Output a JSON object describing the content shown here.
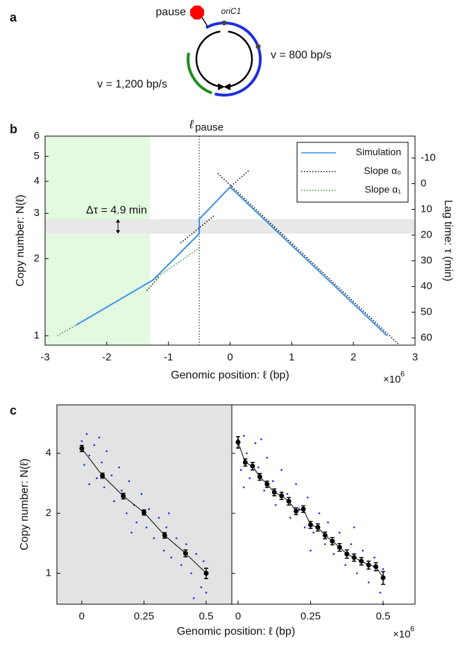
{
  "panel_labels": [
    "a",
    "b",
    "c"
  ],
  "diagram": {
    "pause_label": "pause",
    "origin_label": "oriC1",
    "right_speed": "v = 800 bp/s",
    "left_speed": "v = 1,200 bp/s"
  },
  "chart_data": [
    {
      "type": "line",
      "xlabel": "Genomic position: ℓ (bp)",
      "x_multiplier": "×10",
      "x_multiplier_exp": "6",
      "ylabel": "Copy number: N(ℓ)",
      "y2label": "Lag time:  τ (min)",
      "xlim": [
        -3,
        3
      ],
      "xticks": [
        -3,
        -2,
        -1,
        0,
        1,
        2,
        3
      ],
      "ylim": [
        0.92,
        6
      ],
      "ylog": true,
      "yticks": [
        1,
        2,
        3,
        4,
        5,
        6
      ],
      "y2lim": [
        -18.5,
        62.8
      ],
      "y2_inverted": true,
      "y2ticks": [
        -10,
        0,
        10,
        20,
        30,
        40,
        50,
        60
      ],
      "legend": "upper right",
      "x_region": {
        "xlim": [
          -3,
          -1.3
        ],
        "color": "#e3fae0"
      },
      "y_band": {
        "ylim": [
          2.5,
          2.85
        ],
        "color": "#e8e8e8"
      },
      "vline": {
        "x": -0.5,
        "label": "ℓ",
        "label_sub": "pause"
      },
      "annotation": "Δτ = 4.9 min",
      "series": [
        {
          "name": "Simulation",
          "color": "#3a8ee6",
          "linestyle": "solid",
          "x": [
            -2.5,
            -1.25,
            -0.5,
            -0.5,
            0,
            2.55
          ],
          "values": [
            1.1,
            1.65,
            2.5,
            2.85,
            3.8,
            1.0
          ]
        },
        {
          "name": "Slope  α₀",
          "color": "#000000",
          "linestyle": "dotted",
          "x": [
            -0.2,
            2.75,
            null,
            0.3,
            0,
            null,
            -0.8,
            -0.25,
            null,
            -1.35,
            -1.15
          ],
          "values": [
            4.3,
            0.92,
            null,
            4.4,
            3.8,
            null,
            2.3,
            2.95,
            null,
            1.5,
            1.7
          ]
        },
        {
          "name": "Slope  α₁",
          "color": "#2e8b2e",
          "linestyle": "dotted",
          "x": [
            -2.8,
            -2.5,
            null,
            -1.25,
            -0.5
          ],
          "values": [
            1.0,
            1.1,
            null,
            1.65,
            2.2
          ]
        }
      ]
    },
    {
      "type": "scatter",
      "xlabel": "Genomic position: ℓ (bp)",
      "x_multiplier": "×10",
      "x_multiplier_exp": "6",
      "ylabel": "Copy number: N(ℓ)",
      "ylim": [
        0.7,
        7
      ],
      "ylog": true,
      "yticks": [
        1,
        2,
        4
      ],
      "subplots": [
        {
          "xlim": [
            -0.1,
            0.603
          ],
          "xticks": [
            0,
            0.25,
            0.5
          ],
          "background": "#e3e3e3",
          "dots": {
            "color": "#2020ff",
            "x": [
              0.0,
              0.01,
              0.02,
              0.03,
              0.05,
              0.06,
              0.08,
              0.09,
              0.1,
              0.12,
              0.13,
              0.15,
              0.16,
              0.18,
              0.19,
              0.21,
              0.22,
              0.24,
              0.26,
              0.27,
              0.29,
              0.31,
              0.33,
              0.34,
              0.36,
              0.38,
              0.4,
              0.42,
              0.44,
              0.46,
              0.48,
              0.49,
              0.5,
              0.07,
              0.2,
              0.35,
              0.45,
              0.03
            ],
            "values": [
              4.6,
              3.5,
              5.0,
              3.9,
              4.4,
              3.0,
              3.6,
              2.7,
              4.1,
              3.1,
              2.3,
              3.4,
              2.6,
              2.0,
              2.9,
              2.2,
              1.8,
              2.5,
              1.7,
              2.1,
              1.5,
              1.9,
              1.3,
              1.7,
              1.2,
              1.5,
              1.1,
              1.4,
              1.0,
              1.25,
              0.85,
              1.15,
              0.8,
              4.8,
              1.6,
              2.0,
              0.75,
              2.8
            ]
          },
          "means": {
            "color": "#000000",
            "x": [
              0,
              0.083,
              0.167,
              0.25,
              0.333,
              0.417,
              0.5
            ],
            "values": [
              4.23,
              3.09,
              2.44,
              2.02,
              1.55,
              1.26,
              1.0
            ],
            "errors": [
              0.15,
              0.09,
              0.08,
              0.06,
              0.05,
              0.05,
              0.06
            ]
          }
        },
        {
          "xlim": [
            -0.0215,
            0.61
          ],
          "xticks": [
            0,
            0.25,
            0.5
          ],
          "background": "#ffffff",
          "dots": {
            "color": "#2020ff",
            "x": [
              0.0,
              0.01,
              0.02,
              0.03,
              0.04,
              0.06,
              0.07,
              0.09,
              0.1,
              0.12,
              0.13,
              0.15,
              0.17,
              0.18,
              0.2,
              0.21,
              0.23,
              0.24,
              0.26,
              0.28,
              0.3,
              0.31,
              0.33,
              0.35,
              0.37,
              0.39,
              0.41,
              0.43,
              0.45,
              0.47,
              0.49,
              0.5,
              0.5,
              0.08,
              0.25,
              0.4,
              0.02
            ],
            "values": [
              4.7,
              3.3,
              4.9,
              4.0,
              3.0,
              4.5,
              3.4,
              2.6,
              3.8,
              2.9,
              2.2,
              3.3,
              2.5,
              1.9,
              2.8,
              2.1,
              1.7,
              2.4,
              1.6,
              2.0,
              1.4,
              1.8,
              1.25,
              1.6,
              1.1,
              1.4,
              1.0,
              1.3,
              0.9,
              1.2,
              0.8,
              1.05,
              0.7,
              4.7,
              1.3,
              1.7,
              2.7
            ]
          },
          "means": {
            "color": "#000000",
            "x": [
              0,
              0.025,
              0.05,
              0.075,
              0.1,
              0.125,
              0.15,
              0.175,
              0.2,
              0.225,
              0.25,
              0.275,
              0.3,
              0.325,
              0.35,
              0.375,
              0.4,
              0.425,
              0.45,
              0.475,
              0.5
            ],
            "values": [
              4.55,
              3.6,
              3.45,
              3.05,
              2.8,
              2.55,
              2.45,
              2.3,
              2.05,
              2.1,
              1.75,
              1.7,
              1.55,
              1.45,
              1.35,
              1.25,
              1.2,
              1.15,
              1.1,
              1.08,
              0.95
            ],
            "errors": [
              0.3,
              0.15,
              0.15,
              0.12,
              0.1,
              0.1,
              0.1,
              0.1,
              0.08,
              0.08,
              0.07,
              0.07,
              0.06,
              0.06,
              0.06,
              0.06,
              0.05,
              0.05,
              0.05,
              0.05,
              0.07
            ]
          }
        }
      ]
    }
  ]
}
